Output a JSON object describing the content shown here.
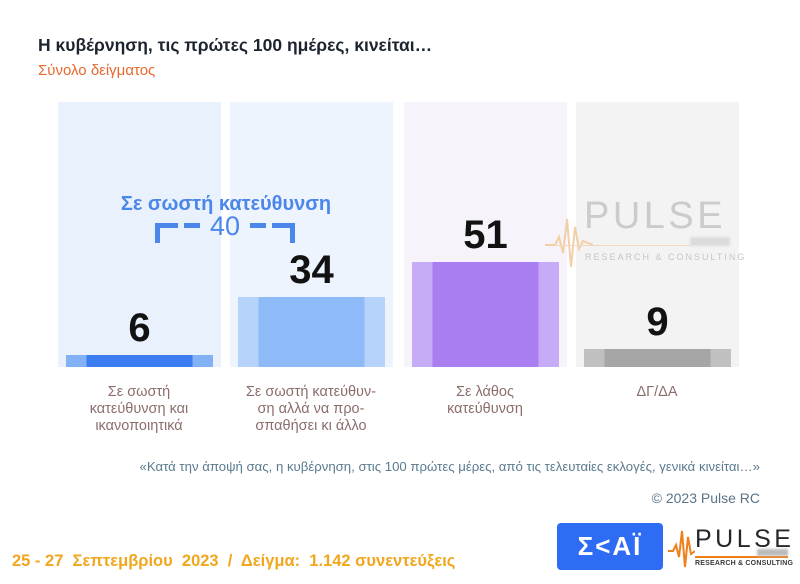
{
  "title": "Η κυβέρνηση, τις πρώτες 100 ημέρες, κινείται…",
  "subtitle": "Σύνολο δείγματος",
  "chart_data": {
    "type": "bar",
    "categories": [
      "Σε σωστή κατεύθυνση και ικανοποιητικά",
      "Σε σωστή κατεύθυνση αλλά να προσπαθήσει κι άλλο",
      "Σε λάθος κατεύθυνση",
      "ΔΓ/ΔΑ"
    ],
    "categories_display": [
      "Σε σωστή\nκατεύθυνση και\nικανοποιητικά",
      "Σε σωστή κατεύθυν-\nση αλλά να προ-\nσπαθήσει κι άλλο",
      "Σε λάθος\nκατεύθυνση",
      "ΔΓ/ΔΑ"
    ],
    "values": [
      6,
      34,
      51,
      9
    ],
    "bar_colors": [
      "#3c7ef1",
      "#8ebbf8",
      "#a87ef0",
      "#a6a6a6"
    ],
    "bar_edge_colors": [
      "#82b1f6",
      "#b5d3fb",
      "#c6abf6",
      "#c0c0c0"
    ],
    "panel_colors": [
      "#e8f1fc",
      "#edf4fe",
      "#f6f3fa",
      "#f3f3f3"
    ],
    "annotation": {
      "label": "Σε σωστή κατεύθυνση",
      "value": 40,
      "color": "#4b87ea"
    },
    "title": "Η κυβέρνηση, τις πρώτες 100 ημέρες, κινείται…",
    "ylim": [
      0,
      60
    ],
    "legend": false
  },
  "watermark": {
    "text": "PULSE",
    "sub": "RESEARCH & CONSULTING"
  },
  "question": "«Κατά την άποψή σας, η κυβέρνηση, στις 100 πρώτες μέρες, από τις τελευταίες εκλογές, γενικά κινείται…»",
  "copyright": "© 2023 Pulse RC",
  "footer": {
    "fieldwork": "25 - 27  Σεπτεμβρίου  2023  /  Δείγμα:  1.142 συνεντεύξεις",
    "skai_text": "Σ<ΑΪ",
    "pulse_text": "PULSE",
    "pulse_sub": "RESEARCH & CONSULTING"
  }
}
